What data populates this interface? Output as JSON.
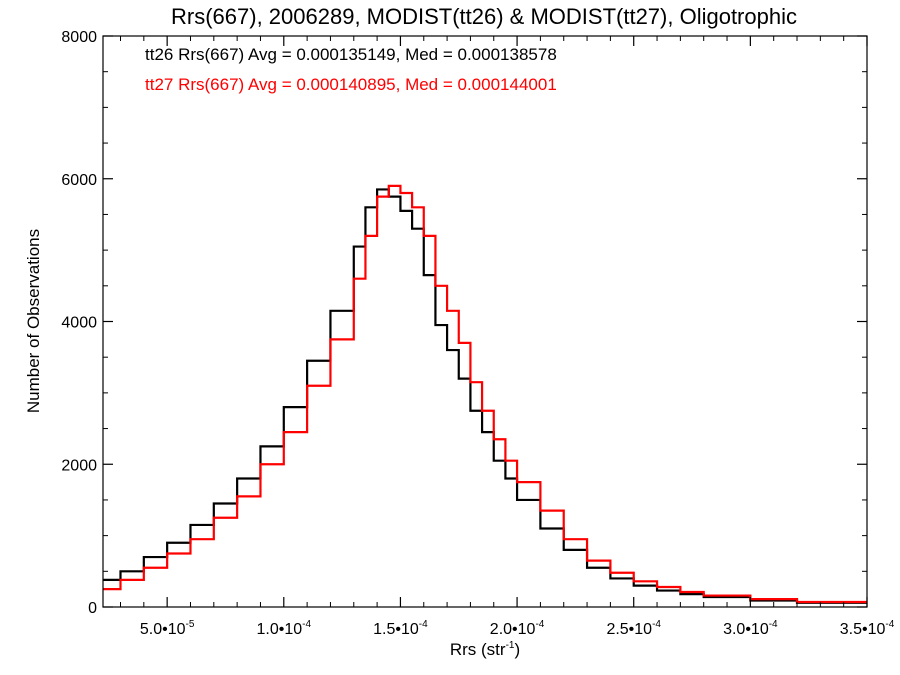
{
  "chart_data": {
    "type": "line",
    "title": "Rrs(667), 2006289, MODIST(tt26) & MODIST(tt27), Oligotrophic",
    "xlabel": "Rrs (str⁻¹)",
    "xlabel_main": "Rrs (str",
    "xlabel_sup": "-1",
    "xlabel_close": ")",
    "ylabel": "Number of Observations",
    "xlim": [
      2.25e-05,
      0.00035
    ],
    "ylim": [
      0,
      8000
    ],
    "x_ticks": [
      {
        "value": 5e-05,
        "label": "5.0•10⁻⁵",
        "mant": "5.0•10",
        "exp": "-5"
      },
      {
        "value": 0.0001,
        "label": "1.0•10⁻⁴",
        "mant": "1.0•10",
        "exp": "-4"
      },
      {
        "value": 0.00015,
        "label": "1.5•10⁻⁴",
        "mant": "1.5•10",
        "exp": "-4"
      },
      {
        "value": 0.0002,
        "label": "2.0•10⁻⁴",
        "mant": "2.0•10",
        "exp": "-4"
      },
      {
        "value": 0.00025,
        "label": "2.5•10⁻⁴",
        "mant": "2.5•10",
        "exp": "-4"
      },
      {
        "value": 0.0003,
        "label": "3.0•10⁻⁴",
        "mant": "3.0•10",
        "exp": "-4"
      },
      {
        "value": 0.00035,
        "label": "3.5•10⁻⁴",
        "mant": "3.5•10",
        "exp": "-4"
      }
    ],
    "y_ticks": [
      {
        "value": 0,
        "label": "0"
      },
      {
        "value": 2000,
        "label": "2000"
      },
      {
        "value": 4000,
        "label": "4000"
      },
      {
        "value": 6000,
        "label": "6000"
      },
      {
        "value": 8000,
        "label": "8000"
      }
    ],
    "annotations": [
      {
        "text": "tt26 Rrs(667) Avg = 0.000135149, Med = 0.000138578",
        "color": "#000000"
      },
      {
        "text": "tt27 Rrs(667) Avg = 0.000140895, Med = 0.000144001",
        "color": "#ff0000"
      }
    ],
    "series": [
      {
        "color": "#000000",
        "x": [
          2.25e-05,
          3e-05,
          4e-05,
          5e-05,
          6e-05,
          7e-05,
          8e-05,
          9e-05,
          0.0001,
          0.00011,
          0.00012,
          0.00013,
          0.000135,
          0.00014,
          0.000145,
          0.00015,
          0.000155,
          0.00016,
          0.000165,
          0.00017,
          0.000175,
          0.00018,
          0.000185,
          0.00019,
          0.000195,
          0.0002,
          0.00021,
          0.00022,
          0.00023,
          0.00024,
          0.00025,
          0.00026,
          0.00027,
          0.00028,
          0.0003,
          0.00032,
          0.00035
        ],
        "y": [
          380,
          500,
          700,
          900,
          1150,
          1450,
          1800,
          2250,
          2800,
          3450,
          4150,
          5050,
          5600,
          5850,
          5750,
          5550,
          5300,
          4650,
          3950,
          3600,
          3200,
          2750,
          2450,
          2050,
          1800,
          1500,
          1100,
          800,
          550,
          400,
          300,
          230,
          180,
          140,
          90,
          60,
          30
        ]
      },
      {
        "color": "#ff0000",
        "x": [
          2.25e-05,
          3e-05,
          4e-05,
          5e-05,
          6e-05,
          7e-05,
          8e-05,
          9e-05,
          0.0001,
          0.00011,
          0.00012,
          0.00013,
          0.000135,
          0.00014,
          0.000145,
          0.00015,
          0.000155,
          0.00016,
          0.000165,
          0.00017,
          0.000175,
          0.00018,
          0.000185,
          0.00019,
          0.000195,
          0.0002,
          0.00021,
          0.00022,
          0.00023,
          0.00024,
          0.00025,
          0.00026,
          0.00027,
          0.00028,
          0.0003,
          0.00032,
          0.00035
        ],
        "y": [
          250,
          380,
          550,
          750,
          950,
          1250,
          1550,
          2000,
          2450,
          3100,
          3750,
          4600,
          5200,
          5750,
          5900,
          5800,
          5600,
          5200,
          4500,
          4150,
          3700,
          3150,
          2750,
          2350,
          2050,
          1750,
          1350,
          950,
          650,
          480,
          360,
          280,
          210,
          160,
          110,
          70,
          40
        ]
      }
    ]
  }
}
